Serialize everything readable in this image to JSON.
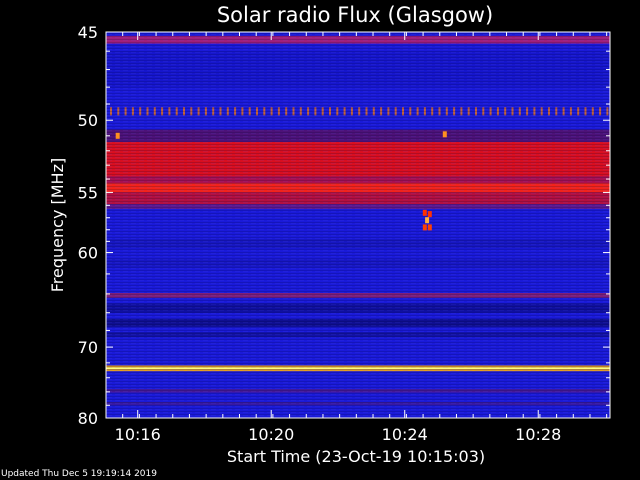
{
  "colors": {
    "background": "#000000",
    "deep_blue": "#1a1ad8",
    "mid_blue": "#2a39f0",
    "dark_band": "#0a0a66",
    "red": "#e0101a",
    "yellow": "#ffff70",
    "axis": "#ffffff"
  },
  "chart_data": {
    "type": "heatmap",
    "title": "Solar radio Flux (Glasgow)",
    "xlabel": "Start Time (23-Oct-19 10:15:03)",
    "ylabel": "Frequency [MHz]",
    "start_time": "10:15:03",
    "x_range_minutes": [
      0,
      15.1
    ],
    "y_range_mhz": [
      45,
      80
    ],
    "y_direction": "frequency increases downward",
    "y_scale": "reciprocal",
    "x_ticks": [
      {
        "label": "10:16",
        "minutes": 0.95
      },
      {
        "label": "10:20",
        "minutes": 4.95
      },
      {
        "label": "10:24",
        "minutes": 8.95
      },
      {
        "label": "10:28",
        "minutes": 12.95
      }
    ],
    "y_ticks": [
      45,
      50,
      55,
      60,
      70,
      80
    ],
    "bands": [
      {
        "mhz": [
          45.2,
          45.6
        ],
        "color": "#b02070",
        "alpha": 0.9
      },
      {
        "mhz": [
          46.0,
          48.0
        ],
        "color": "#1010b8",
        "alpha": 0.35
      },
      {
        "mhz": [
          49.2,
          49.7
        ],
        "color": "#e07020",
        "alpha": 0.85,
        "dotted": true
      },
      {
        "mhz": [
          50.6,
          51.4
        ],
        "color": "#5a1060",
        "alpha": 0.8
      },
      {
        "mhz": [
          51.4,
          53.8
        ],
        "color": "#e0101a",
        "alpha": 0.97
      },
      {
        "mhz": [
          53.8,
          54.3
        ],
        "color": "#b81040",
        "alpha": 0.9
      },
      {
        "mhz": [
          54.3,
          55.0
        ],
        "color": "#ff2410",
        "alpha": 0.95
      },
      {
        "mhz": [
          55.0,
          55.9
        ],
        "color": "#c41030",
        "alpha": 0.9
      },
      {
        "mhz": [
          55.9,
          56.3
        ],
        "color": "#7a1870",
        "alpha": 0.7
      },
      {
        "mhz": [
          58.8,
          59.6
        ],
        "color": "#1414a0",
        "alpha": 0.4
      },
      {
        "mhz": [
          60.6,
          61.4
        ],
        "color": "#1414a0",
        "alpha": 0.35
      },
      {
        "mhz": [
          63.9,
          64.4
        ],
        "color": "#8a2070",
        "alpha": 0.9
      },
      {
        "mhz": [
          65.0,
          66.0
        ],
        "color": "#0a0a70",
        "alpha": 0.55
      },
      {
        "mhz": [
          66.7,
          67.6
        ],
        "color": "#080860",
        "alpha": 0.6
      },
      {
        "mhz": [
          68.2,
          68.8
        ],
        "color": "#0a0a70",
        "alpha": 0.5
      },
      {
        "mhz": [
          72.35,
          72.6
        ],
        "color": "#e8a018",
        "alpha": 1.0
      },
      {
        "mhz": [
          72.6,
          72.85
        ],
        "color": "#ffff78",
        "alpha": 1.0
      },
      {
        "mhz": [
          72.85,
          73.1
        ],
        "color": "#e8a018",
        "alpha": 1.0
      },
      {
        "mhz": [
          75.6,
          76.1
        ],
        "color": "#6a1860",
        "alpha": 0.55
      },
      {
        "mhz": [
          77.5,
          78.0
        ],
        "color": "#5a1860",
        "alpha": 0.45
      }
    ],
    "bursts": [
      {
        "minutes": 9.55,
        "mhz": 56.6,
        "color": "#ff3000"
      },
      {
        "minutes": 9.7,
        "mhz": 56.7,
        "color": "#ff3000"
      },
      {
        "minutes": 9.55,
        "mhz": 57.8,
        "color": "#ff4000"
      },
      {
        "minutes": 9.7,
        "mhz": 57.8,
        "color": "#ff4000"
      },
      {
        "minutes": 9.62,
        "mhz": 57.2,
        "color": "#ffb040"
      },
      {
        "minutes": 10.15,
        "mhz": 50.9,
        "color": "#ff9020"
      },
      {
        "minutes": 0.35,
        "mhz": 51.0,
        "color": "#ff9020"
      }
    ]
  },
  "footer": {
    "updated": "Updated Thu Dec  5 19:19:14 2019"
  }
}
